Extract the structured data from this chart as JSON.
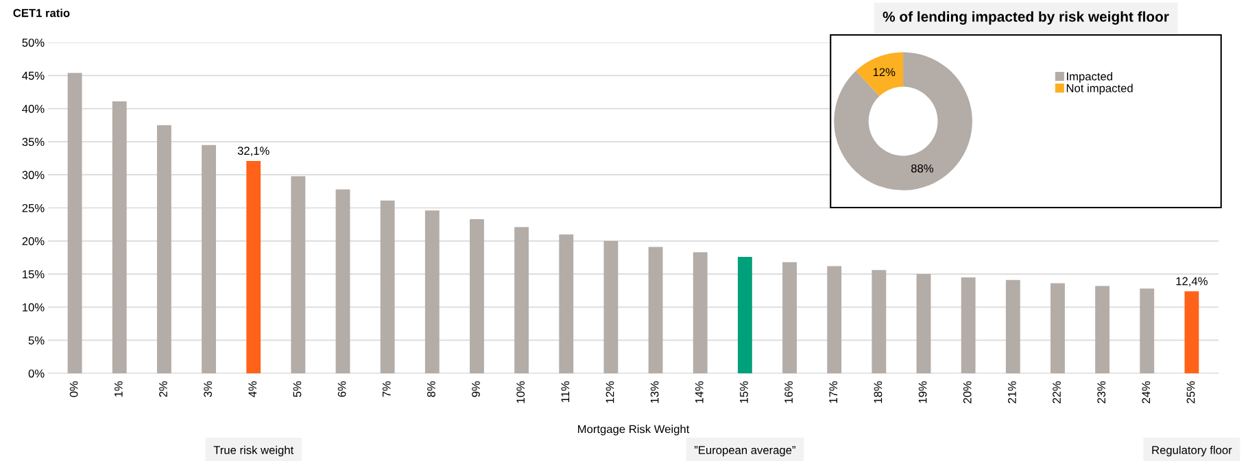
{
  "chart_data": [
    {
      "type": "bar",
      "ylabel": "CET1 ratio",
      "xlabel": "Mortgage Risk Weight",
      "categories": [
        "0%",
        "1%",
        "2%",
        "3%",
        "4%",
        "5%",
        "6%",
        "7%",
        "8%",
        "9%",
        "10%",
        "11%",
        "12%",
        "13%",
        "14%",
        "15%",
        "16%",
        "17%",
        "18%",
        "19%",
        "20%",
        "21%",
        "22%",
        "23%",
        "24%",
        "25%"
      ],
      "values": [
        45.4,
        41.1,
        37.5,
        34.5,
        32.1,
        29.8,
        27.8,
        26.1,
        24.6,
        23.3,
        22.1,
        21.0,
        20.0,
        19.1,
        18.3,
        17.6,
        16.8,
        16.2,
        15.6,
        15.0,
        14.5,
        14.1,
        13.6,
        13.2,
        12.8,
        12.4
      ],
      "colors": [
        "#b3aca7",
        "#b3aca7",
        "#b3aca7",
        "#b3aca7",
        "#ff6319",
        "#b3aca7",
        "#b3aca7",
        "#b3aca7",
        "#b3aca7",
        "#b3aca7",
        "#b3aca7",
        "#b3aca7",
        "#b3aca7",
        "#b3aca7",
        "#b3aca7",
        "#00a07a",
        "#b3aca7",
        "#b3aca7",
        "#b3aca7",
        "#b3aca7",
        "#b3aca7",
        "#b3aca7",
        "#b3aca7",
        "#b3aca7",
        "#b3aca7",
        "#ff6319"
      ],
      "value_labels": [
        null,
        null,
        null,
        null,
        "32,1%",
        null,
        null,
        null,
        null,
        null,
        null,
        null,
        null,
        null,
        null,
        null,
        null,
        null,
        null,
        null,
        null,
        null,
        null,
        null,
        null,
        "12,4%"
      ],
      "ylim": [
        0,
        50
      ],
      "yticks": [
        {
          "value": 0,
          "label": "0%"
        },
        {
          "value": 5,
          "label": "5%"
        },
        {
          "value": 10,
          "label": "10%"
        },
        {
          "value": 15,
          "label": "15%"
        },
        {
          "value": 20,
          "label": "20%"
        },
        {
          "value": 25,
          "label": "25%"
        },
        {
          "value": 30,
          "label": "30%"
        },
        {
          "value": 35,
          "label": "35%"
        },
        {
          "value": 40,
          "label": "40%"
        },
        {
          "value": 45,
          "label": "45%"
        },
        {
          "value": 50,
          "label": "50%"
        }
      ],
      "grid": "y",
      "annotations": [
        "True risk weight",
        "”European average”",
        "Regulatory floor"
      ]
    },
    {
      "type": "donut",
      "title": "% of lending impacted by risk weight floor",
      "categories": [
        "Impacted",
        "Not impacted"
      ],
      "values": [
        88,
        12
      ],
      "colors": [
        "#b3aca7",
        "#fdb022"
      ],
      "value_labels": [
        "88%",
        "12%"
      ],
      "legend": "right"
    }
  ]
}
